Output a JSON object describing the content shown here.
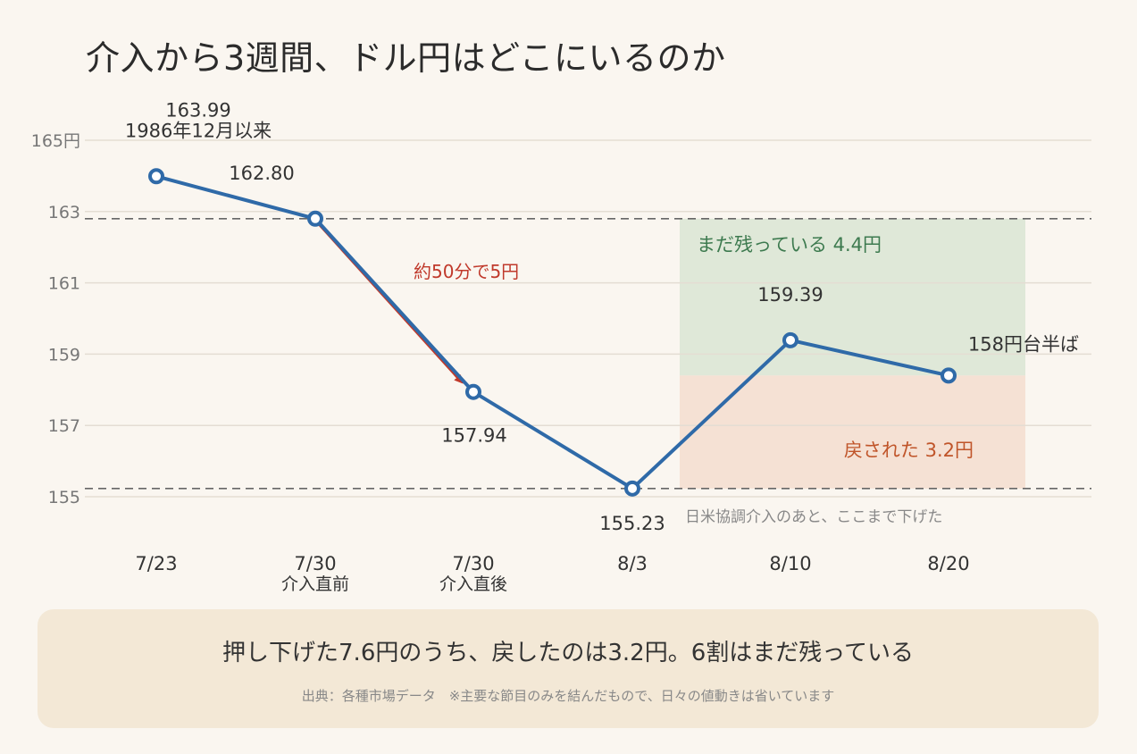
{
  "title": "介入から3週間、ドル円はどこにいるのか",
  "chart_data": {
    "type": "line",
    "unit": "円",
    "ylim": [
      155,
      165
    ],
    "yticks": [
      {
        "value": 165,
        "label": "165円"
      },
      {
        "value": 163,
        "label": "163"
      },
      {
        "value": 161,
        "label": "161"
      },
      {
        "value": 159,
        "label": "159"
      },
      {
        "value": 157,
        "label": "157"
      },
      {
        "value": 155,
        "label": "155"
      }
    ],
    "grid": true,
    "points": [
      {
        "date": "7/23",
        "sub": "",
        "value": 163.99,
        "label": "163.99",
        "note": "1986年12月以来"
      },
      {
        "date": "7/30",
        "sub": "介入直前",
        "value": 162.8,
        "label": "162.80",
        "note": ""
      },
      {
        "date": "7/30",
        "sub": "介入直後",
        "value": 157.94,
        "label": "157.94",
        "note": ""
      },
      {
        "date": "8/3",
        "sub": "",
        "value": 155.23,
        "label": "155.23",
        "note": ""
      },
      {
        "date": "8/10",
        "sub": "",
        "value": 159.39,
        "label": "159.39",
        "note": ""
      },
      {
        "date": "8/20",
        "sub": "",
        "value": 158.4,
        "label": "158円台半ば",
        "note": ""
      }
    ],
    "reference_lines": [
      162.8,
      155.23
    ],
    "reference_note": "日米協調介入のあと、ここまで下げた",
    "drop_annotation": "約50分で5円",
    "bands": [
      {
        "from": 158.4,
        "to": 162.8,
        "label": "まだ残っている 4.4円",
        "color": "#dfe8d8",
        "text_color": "#3d7a4f"
      },
      {
        "from": 155.23,
        "to": 158.4,
        "label": "戻された 3.2円",
        "color": "#f5e1d4",
        "text_color": "#c0552a"
      }
    ],
    "colors": {
      "line": "#2f6aa8",
      "arrow": "#c0392b",
      "grid": "#e4ddd3",
      "ref": "#666666",
      "tick": "#777777",
      "label": "#333333"
    }
  },
  "summary": {
    "main": "押し下げた7.6円のうち、戻したのは3.2円。6割はまだ残っている",
    "source": "出典：各種市場データ　※主要な節目のみを結んだもので、日々の値動きは省いています"
  }
}
